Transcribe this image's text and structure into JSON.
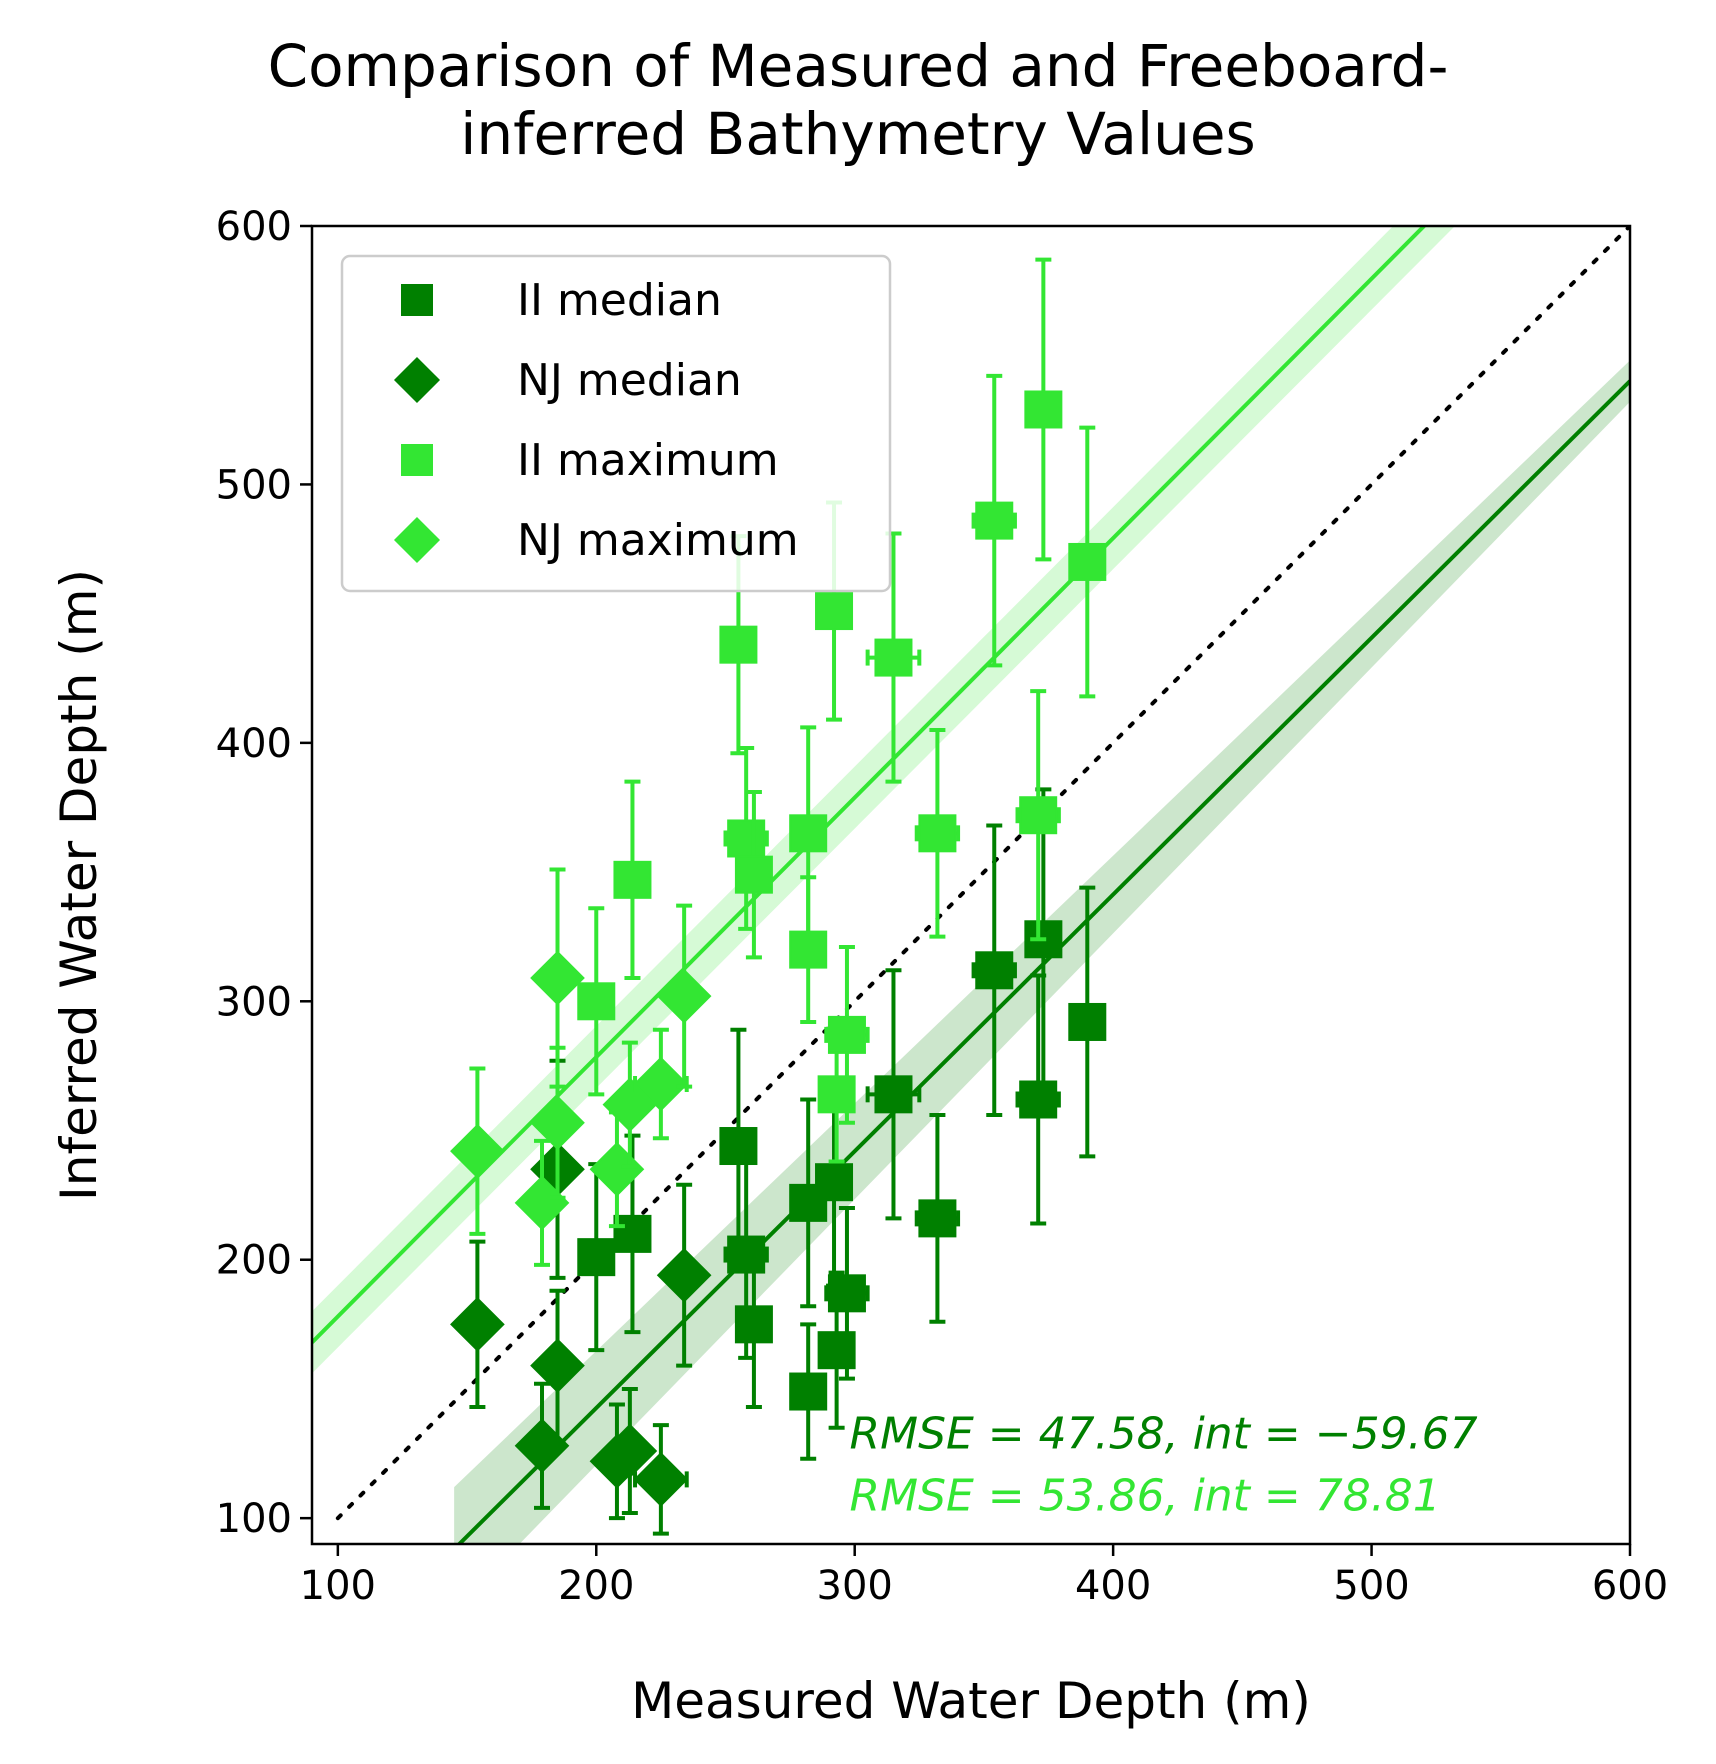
{
  "chart_data": {
    "type": "scatter",
    "title_lines": [
      "Comparison of Measured and Freeboard-",
      "inferred Bathymetry Values"
    ],
    "xlabel": "Measured Water Depth (m)",
    "ylabel": "Inferred Water Depth (m)",
    "xlim": [
      90,
      600
    ],
    "ylim": [
      90,
      600
    ],
    "xticks": [
      100,
      200,
      300,
      400,
      500,
      600
    ],
    "yticks": [
      100,
      200,
      300,
      400,
      500,
      600
    ],
    "legend_position": "upper-left",
    "identity_line": {
      "style": "dotted",
      "from": [
        100,
        100
      ],
      "to": [
        600,
        600
      ]
    },
    "series": [
      {
        "name": "II median",
        "marker": "square",
        "color": "#008000",
        "points": [
          {
            "x": 255,
            "y": 244,
            "yerr": 45,
            "xerr": 4
          },
          {
            "x": 258,
            "y": 202,
            "yerr": 40,
            "xerr": 8
          },
          {
            "x": 261,
            "y": 175,
            "yerr": 32,
            "xerr": 4
          },
          {
            "x": 282,
            "y": 222,
            "yerr": 40,
            "xerr": 5
          },
          {
            "x": 292,
            "y": 230,
            "yerr": 40,
            "xerr": 4
          },
          {
            "x": 293,
            "y": 165,
            "yerr": 30,
            "xerr": 4
          },
          {
            "x": 297,
            "y": 187,
            "yerr": 33,
            "xerr": 8
          },
          {
            "x": 315,
            "y": 264,
            "yerr": 48,
            "xerr": 10
          },
          {
            "x": 332,
            "y": 216,
            "yerr": 40,
            "xerr": 8
          },
          {
            "x": 354,
            "y": 312,
            "yerr": 56,
            "xerr": 8
          },
          {
            "x": 371,
            "y": 262,
            "yerr": 48,
            "xerr": 8
          },
          {
            "x": 373,
            "y": 324,
            "yerr": 58,
            "xerr": 6
          },
          {
            "x": 390,
            "y": 292,
            "yerr": 52,
            "xerr": 6
          },
          {
            "x": 282,
            "y": 149,
            "yerr": 26,
            "xerr": 4
          },
          {
            "x": 200,
            "y": 201,
            "yerr": 36,
            "xerr": 6
          },
          {
            "x": 214,
            "y": 210,
            "yerr": 38,
            "xerr": 6
          }
        ]
      },
      {
        "name": "NJ median",
        "marker": "diamond",
        "color": "#008000",
        "points": [
          {
            "x": 154,
            "y": 175,
            "yerr": 32,
            "xerr": 4
          },
          {
            "x": 179,
            "y": 128,
            "yerr": 24,
            "xerr": 4
          },
          {
            "x": 185,
            "y": 235,
            "yerr": 42,
            "xerr": 4
          },
          {
            "x": 185,
            "y": 159,
            "yerr": 29,
            "xerr": 4
          },
          {
            "x": 208,
            "y": 122,
            "yerr": 22,
            "xerr": 4
          },
          {
            "x": 213,
            "y": 126,
            "yerr": 24,
            "xerr": 4
          },
          {
            "x": 225,
            "y": 115,
            "yerr": 21,
            "xerr": 10
          },
          {
            "x": 234,
            "y": 194,
            "yerr": 35,
            "xerr": 4
          }
        ]
      },
      {
        "name": "II maximum",
        "marker": "square",
        "color": "#33e633",
        "points": [
          {
            "x": 255,
            "y": 438,
            "yerr": 42,
            "xerr": 4
          },
          {
            "x": 258,
            "y": 363,
            "yerr": 35,
            "xerr": 8
          },
          {
            "x": 261,
            "y": 349,
            "yerr": 32,
            "xerr": 4
          },
          {
            "x": 282,
            "y": 365,
            "yerr": 41,
            "xerr": 5
          },
          {
            "x": 292,
            "y": 451,
            "yerr": 42,
            "xerr": 4
          },
          {
            "x": 293,
            "y": 264,
            "yerr": 26,
            "xerr": 4
          },
          {
            "x": 297,
            "y": 287,
            "yerr": 34,
            "xerr": 8
          },
          {
            "x": 315,
            "y": 433,
            "yerr": 48,
            "xerr": 10
          },
          {
            "x": 332,
            "y": 365,
            "yerr": 40,
            "xerr": 8
          },
          {
            "x": 354,
            "y": 486,
            "yerr": 56,
            "xerr": 8
          },
          {
            "x": 371,
            "y": 372,
            "yerr": 48,
            "xerr": 8
          },
          {
            "x": 373,
            "y": 529,
            "yerr": 58,
            "xerr": 6
          },
          {
            "x": 390,
            "y": 470,
            "yerr": 52,
            "xerr": 6
          },
          {
            "x": 282,
            "y": 320,
            "yerr": 28,
            "xerr": 4
          },
          {
            "x": 200,
            "y": 300,
            "yerr": 36,
            "xerr": 6
          },
          {
            "x": 214,
            "y": 347,
            "yerr": 38,
            "xerr": 6
          }
        ]
      },
      {
        "name": "NJ maximum",
        "marker": "diamond",
        "color": "#33e633",
        "points": [
          {
            "x": 154,
            "y": 242,
            "yerr": 32,
            "xerr": 4
          },
          {
            "x": 179,
            "y": 222,
            "yerr": 24,
            "xerr": 4
          },
          {
            "x": 185,
            "y": 309,
            "yerr": 42,
            "xerr": 4
          },
          {
            "x": 185,
            "y": 253,
            "yerr": 29,
            "xerr": 4
          },
          {
            "x": 208,
            "y": 235,
            "yerr": 22,
            "xerr": 4
          },
          {
            "x": 213,
            "y": 260,
            "yerr": 24,
            "xerr": 4
          },
          {
            "x": 225,
            "y": 268,
            "yerr": 21,
            "xerr": 10
          },
          {
            "x": 234,
            "y": 302,
            "yerr": 35,
            "xerr": 4
          }
        ]
      }
    ],
    "fits": [
      {
        "name": "median fit",
        "color": "#008000",
        "x0": 145,
        "y0": 88,
        "x1": 600,
        "y1": 540,
        "band_x0": 24,
        "band_x1": 8
      },
      {
        "name": "maximum fit",
        "color": "#33e633",
        "x0": 90,
        "y0": 168,
        "x1": 600,
        "y1": 680,
        "band_x0": 12,
        "band_x1": 12
      }
    ],
    "annotations": [
      {
        "text": "RMSE = 47.58, int = −59.67",
        "color": "#008000",
        "x": 298,
        "y": 127
      },
      {
        "text": "RMSE = 53.86, int = 78.81",
        "color": "#33e633",
        "x": 298,
        "y": 103
      }
    ]
  }
}
